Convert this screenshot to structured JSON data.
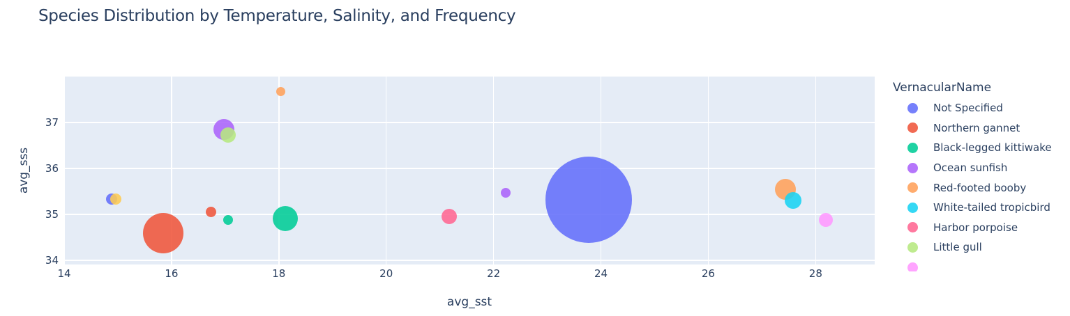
{
  "chart_data": {
    "type": "scatter",
    "subtype": "bubble",
    "title": "Species Distribution by Temperature, Salinity, and Frequency",
    "xlabel": "avg_sst",
    "ylabel": "avg_sss",
    "xlim": [
      14.0,
      29.1
    ],
    "ylim": [
      33.91,
      38.0
    ],
    "x_ticks": [
      "14",
      "16",
      "18",
      "20",
      "22",
      "24",
      "26",
      "28"
    ],
    "y_ticks": [
      "34",
      "35",
      "36",
      "37"
    ],
    "grid": true,
    "legend_title": "VernacularName",
    "legend_position": "right",
    "series": [
      {
        "name": "Not Specified",
        "color": "#636EFA",
        "points": [
          {
            "x": 14.88,
            "y": 35.33,
            "size": 8
          },
          {
            "x": 23.77,
            "y": 35.32,
            "size": 62
          }
        ]
      },
      {
        "name": "Northern gannet",
        "color": "#EF553B",
        "points": [
          {
            "x": 15.84,
            "y": 34.59,
            "size": 29
          },
          {
            "x": 16.74,
            "y": 35.05,
            "size": 7.5
          }
        ]
      },
      {
        "name": "Black-legged kittiwake",
        "color": "#00CC96",
        "points": [
          {
            "x": 17.06,
            "y": 34.88,
            "size": 7
          },
          {
            "x": 18.12,
            "y": 34.91,
            "size": 18
          }
        ]
      },
      {
        "name": "Ocean sunfish",
        "color": "#AB63FA",
        "points": [
          {
            "x": 16.97,
            "y": 36.85,
            "size": 15
          },
          {
            "x": 22.22,
            "y": 35.47,
            "size": 7
          }
        ]
      },
      {
        "name": "Red-footed booby",
        "color": "#FFA15A",
        "points": [
          {
            "x": 18.04,
            "y": 37.67,
            "size": 6.5
          },
          {
            "x": 27.44,
            "y": 35.55,
            "size": 15
          }
        ]
      },
      {
        "name": "White-tailed tropicbird",
        "color": "#19D3F3",
        "points": [
          {
            "x": 27.58,
            "y": 35.3,
            "size": 12
          }
        ]
      },
      {
        "name": "Harbor porpoise",
        "color": "#FF6692",
        "points": [
          {
            "x": 21.17,
            "y": 34.95,
            "size": 11
          }
        ]
      },
      {
        "name": "Little gull",
        "color": "#B6E880",
        "points": [
          {
            "x": 17.06,
            "y": 36.73,
            "size": 11
          }
        ]
      },
      {
        "name": "",
        "color": "#FF97FF",
        "points": [
          {
            "x": 28.19,
            "y": 34.88,
            "size": 10
          }
        ]
      },
      {
        "name": "",
        "color": "#FECB52",
        "points": [
          {
            "x": 14.96,
            "y": 35.33,
            "size": 8
          }
        ]
      }
    ]
  },
  "legend": {
    "title": "VernacularName",
    "items": [
      {
        "label": "Not Specified",
        "color": "#636EFA"
      },
      {
        "label": "Northern gannet",
        "color": "#EF553B"
      },
      {
        "label": "Black-legged kittiwake",
        "color": "#00CC96"
      },
      {
        "label": "Ocean sunfish",
        "color": "#AB63FA"
      },
      {
        "label": "Red-footed booby",
        "color": "#FFA15A"
      },
      {
        "label": "White-tailed tropicbird",
        "color": "#19D3F3"
      },
      {
        "label": "Harbor porpoise",
        "color": "#FF6692"
      },
      {
        "label": "Little gull",
        "color": "#B6E880"
      },
      {
        "label": "",
        "color": "#FF97FF"
      }
    ]
  }
}
